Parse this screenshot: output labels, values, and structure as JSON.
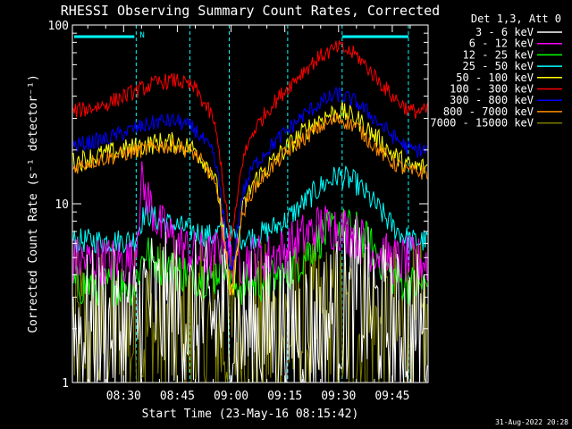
{
  "chart_data": {
    "type": "line",
    "title": "RHESSI Observing Summary Count Rates, Corrected",
    "ylabel": "Corrected Count Rate (s⁻¹ detector⁻¹)",
    "xlabel": "Start Time (23-May-16 08:15:42)",
    "yscale": "log",
    "ylim": [
      1,
      100
    ],
    "y_ticks": [
      "1",
      "10",
      "100"
    ],
    "x_ticks": [
      "08:30",
      "08:45",
      "09:00",
      "09:15",
      "09:30",
      "09:45"
    ],
    "x_tick_minutes": [
      30,
      45,
      60,
      75,
      90,
      105
    ],
    "xlim_minutes": [
      15.7,
      115
    ],
    "legend_title": "Det 1,3, Att 0",
    "legend_position": "top-right outside plot",
    "markers": {
      "night_label": "N",
      "vertical_lines_minutes": [
        33.5,
        48.5,
        59.5,
        75.8,
        91.0,
        109.5
      ]
    },
    "footer_date": "31-Aug-2022 20:28",
    "series": [
      {
        "name": "3 - 6 keV",
        "color": "#ffffff",
        "x": [
          16,
          20,
          25,
          30,
          33,
          36,
          40,
          45,
          50,
          55,
          58,
          60,
          63,
          66,
          70,
          75,
          80,
          85,
          90,
          95,
          100,
          105,
          110
        ],
        "y": [
          2.0,
          2.0,
          2.0,
          2.0,
          2.0,
          3.0,
          2.5,
          2.5,
          2.3,
          2.2,
          2.5,
          2.0,
          2.0,
          2.0,
          2.0,
          2.0,
          2.0,
          2.0,
          2.5,
          3.0,
          2.5,
          2.0,
          2.0
        ]
      },
      {
        "name": "6 - 12 keV",
        "color": "#ff00ff",
        "x": [
          16,
          20,
          25,
          30,
          33,
          35,
          40,
          45,
          50,
          55,
          58,
          60,
          63,
          66,
          70,
          75,
          80,
          85,
          90,
          95,
          100,
          105,
          110
        ],
        "y": [
          4.8,
          4.8,
          4.8,
          4.8,
          4.8,
          13,
          7.5,
          6.0,
          5.2,
          5.0,
          6.5,
          4.8,
          4.8,
          5.0,
          5.0,
          5.5,
          6.5,
          7.5,
          7.5,
          6.5,
          5.5,
          4.8,
          4.8
        ]
      },
      {
        "name": "12 - 25 keV",
        "color": "#00ff00",
        "x": [
          16,
          20,
          25,
          30,
          33,
          36,
          40,
          45,
          50,
          55,
          58,
          60,
          63,
          66,
          70,
          75,
          80,
          85,
          90,
          95,
          100,
          105,
          110
        ],
        "y": [
          3.5,
          3.5,
          3.5,
          3.5,
          3.5,
          5.5,
          4.5,
          4.2,
          4.0,
          3.8,
          5.0,
          3.5,
          3.5,
          3.6,
          3.7,
          4.0,
          5.0,
          6.5,
          7.5,
          7.0,
          5.5,
          4.0,
          3.5
        ]
      },
      {
        "name": "25 - 50 keV",
        "color": "#00ffff",
        "x": [
          16,
          20,
          25,
          30,
          33,
          36,
          40,
          45,
          50,
          55,
          58,
          60,
          63,
          66,
          70,
          75,
          80,
          85,
          90,
          95,
          100,
          105,
          110
        ],
        "y": [
          6.2,
          6.2,
          6.2,
          6.2,
          6.3,
          9.0,
          8.0,
          7.5,
          7.0,
          6.5,
          7.5,
          6.5,
          6.5,
          6.5,
          7.0,
          8.0,
          10.0,
          12.5,
          14.5,
          13.0,
          10.0,
          7.5,
          6.2
        ]
      },
      {
        "name": "50 - 100 keV",
        "color": "#ffff00",
        "x": [
          16,
          20,
          25,
          30,
          35,
          40,
          45,
          50,
          55,
          57,
          59,
          60,
          61,
          63,
          66,
          70,
          75,
          80,
          85,
          90,
          95,
          100,
          105,
          110
        ],
        "y": [
          17,
          18,
          19,
          20,
          21,
          22,
          22,
          20,
          15,
          10,
          4.0,
          3.0,
          4.0,
          9.0,
          13,
          16,
          20,
          25,
          30,
          33,
          30,
          24,
          19,
          16
        ]
      },
      {
        "name": "100 - 300 keV",
        "color": "#ff0000",
        "x": [
          16,
          20,
          25,
          30,
          35,
          40,
          45,
          50,
          55,
          57,
          59,
          60,
          61,
          63,
          66,
          70,
          75,
          80,
          85,
          90,
          95,
          100,
          105,
          110
        ],
        "y": [
          33,
          34,
          36,
          40,
          44,
          48,
          49,
          44,
          30,
          18,
          8.0,
          6.0,
          8.0,
          17,
          25,
          33,
          43,
          55,
          67,
          75,
          68,
          52,
          40,
          33
        ]
      },
      {
        "name": "300 - 800 keV",
        "color": "#0000ff",
        "x": [
          16,
          20,
          25,
          30,
          35,
          40,
          45,
          50,
          55,
          57,
          59,
          60,
          61,
          63,
          66,
          70,
          75,
          80,
          85,
          90,
          95,
          100,
          105,
          110
        ],
        "y": [
          21,
          22,
          23,
          25,
          27,
          29,
          29,
          26,
          19,
          12,
          5.5,
          4.0,
          5.5,
          11,
          16,
          20,
          25,
          31,
          37,
          41,
          37,
          30,
          24,
          20
        ]
      },
      {
        "name": "800 - 7000 keV",
        "color": "#ff8c00",
        "x": [
          16,
          20,
          25,
          30,
          35,
          40,
          45,
          50,
          55,
          57,
          59,
          60,
          61,
          63,
          66,
          70,
          75,
          80,
          85,
          90,
          95,
          100,
          105,
          110
        ],
        "y": [
          16,
          17,
          18,
          19,
          20,
          21,
          21,
          19,
          14,
          9.0,
          4.5,
          3.2,
          4.5,
          8.5,
          12,
          15,
          19,
          23,
          27,
          30,
          27,
          21,
          17,
          15
        ]
      },
      {
        "name": "7000 - 15000 keV",
        "color": "#808000",
        "x": [
          16,
          20,
          25,
          30,
          33,
          36,
          40,
          45,
          50,
          55,
          58,
          60,
          63,
          66,
          70,
          75,
          80,
          85,
          90,
          95,
          100,
          105,
          110
        ],
        "y": [
          1.8,
          1.8,
          1.8,
          1.8,
          1.8,
          1.9,
          1.9,
          1.9,
          1.8,
          1.8,
          1.8,
          1.7,
          1.8,
          1.8,
          1.8,
          1.9,
          1.9,
          1.9,
          1.9,
          1.9,
          1.9,
          1.8,
          1.8
        ]
      }
    ]
  }
}
